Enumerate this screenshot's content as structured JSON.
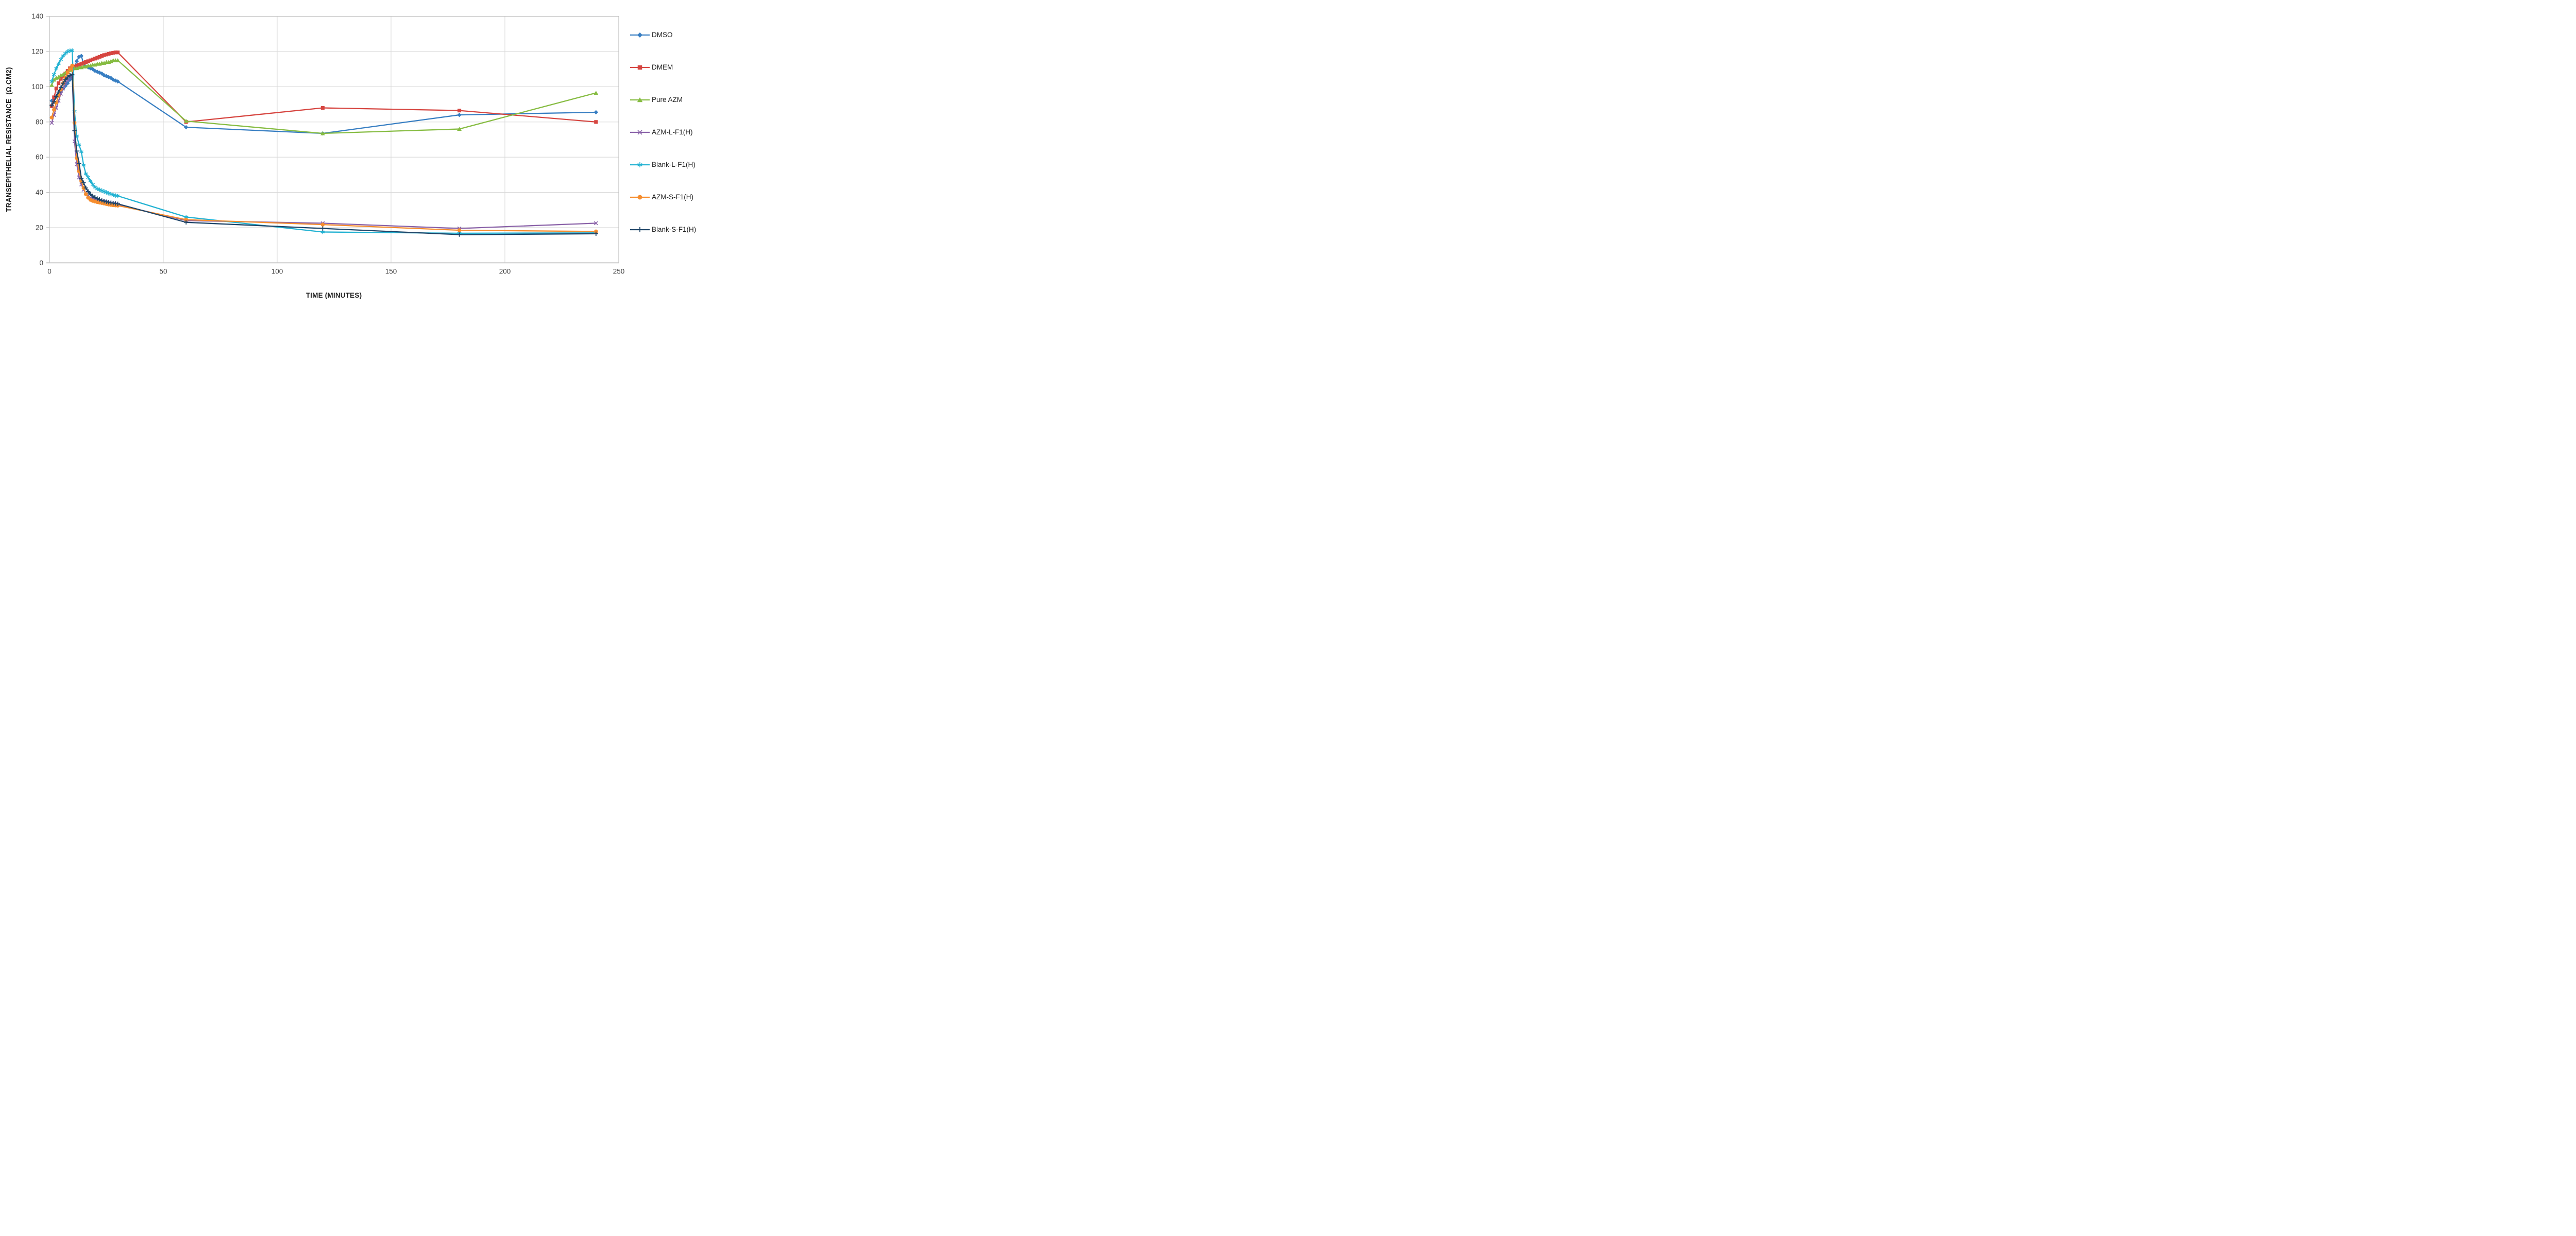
{
  "chart_data": {
    "type": "line",
    "xlabel": "TIME (MINUTES)",
    "ylabel": "TRANSEPITHELIAL RESISTANCE  (Ω.CM2)",
    "xlim": [
      0,
      250
    ],
    "ylim": [
      0,
      140
    ],
    "xticks": [
      0,
      50,
      100,
      150,
      200,
      250
    ],
    "yticks": [
      0,
      20,
      40,
      60,
      80,
      100,
      120,
      140
    ],
    "grid": true,
    "legend_position": "right",
    "x": [
      1,
      2,
      3,
      4,
      5,
      6,
      7,
      8,
      9,
      10,
      11,
      12,
      13,
      14,
      15,
      16,
      17,
      18,
      19,
      20,
      21,
      22,
      23,
      24,
      25,
      26,
      27,
      28,
      29,
      30,
      60,
      120,
      180,
      240
    ],
    "series": [
      {
        "name": "DMSO",
        "color": "#377EC2",
        "marker": "diamond",
        "values": [
          92,
          93,
          94.5,
          96,
          97.5,
          99,
          100.5,
          102,
          104,
          106.5,
          111,
          114.5,
          117,
          117.5,
          113,
          111.5,
          111,
          110.5,
          110,
          109,
          108.5,
          108,
          107.5,
          106.5,
          106,
          105.5,
          105,
          104,
          103.5,
          103,
          77,
          73.5,
          84,
          85.5
        ]
      },
      {
        "name": "DMEM",
        "color": "#D64540",
        "marker": "square",
        "values": [
          89,
          94,
          99,
          102,
          104.5,
          106,
          107.5,
          109,
          110.5,
          111.5,
          111.5,
          112,
          112.5,
          113,
          113.5,
          114,
          114.5,
          115,
          115.5,
          116,
          116.5,
          117,
          117.5,
          118,
          118.3,
          118.7,
          119,
          119.3,
          119.5,
          119.5,
          80,
          88,
          86.5,
          80
        ]
      },
      {
        "name": "Pure AZM",
        "color": "#86BC42",
        "marker": "triangle",
        "values": [
          101,
          104,
          105,
          105.5,
          106.5,
          107,
          108,
          108.5,
          109.5,
          110,
          110.5,
          110.5,
          111,
          111,
          111.5,
          111.5,
          112,
          112,
          112.5,
          112.5,
          113,
          113,
          113.5,
          113.5,
          114,
          114,
          114.5,
          115,
          115,
          115,
          80.5,
          73.5,
          76,
          96.5
        ]
      },
      {
        "name": "AZM-L-F1(H)",
        "color": "#8A62A8",
        "marker": "x",
        "values": [
          79.5,
          84,
          88,
          92,
          96,
          99,
          102,
          104,
          105.5,
          106.5,
          69,
          56,
          48.5,
          44.5,
          41.5,
          39.5,
          38,
          37,
          36.5,
          36,
          35.5,
          35.2,
          35,
          34.7,
          34.4,
          34,
          33.7,
          33.4,
          33.2,
          33,
          24,
          22.5,
          19.5,
          22.5
        ]
      },
      {
        "name": "Blank-L-F1(H)",
        "color": "#22B2D2",
        "marker": "asterisk",
        "values": [
          103,
          107,
          110.5,
          113,
          115.5,
          117.5,
          119,
          120,
          120.5,
          120.5,
          86,
          72,
          67,
          63,
          55.5,
          50.5,
          48.5,
          46.5,
          44.5,
          43,
          42,
          41.5,
          41,
          40.5,
          40,
          39.5,
          39,
          38.5,
          38.2,
          38,
          26,
          17.5,
          16.8,
          17
        ]
      },
      {
        "name": "AZM-S-F1(H)",
        "color": "#F68D2E",
        "marker": "circle",
        "values": [
          82.5,
          87,
          91,
          95,
          98.5,
          102,
          105,
          108,
          110,
          112,
          79.5,
          59.5,
          52,
          46.5,
          42.5,
          39,
          37,
          35.8,
          35.2,
          34.8,
          34.5,
          34.2,
          34,
          33.7,
          33.4,
          33.1,
          32.9,
          32.7,
          32.6,
          32.5,
          24.5,
          21.7,
          18.5,
          17.8
        ]
      },
      {
        "name": "Blank-S-F1(H)",
        "color": "#1F4568",
        "marker": "plus",
        "values": [
          89.5,
          91.5,
          94.5,
          97,
          99.5,
          102,
          104,
          105.5,
          106.5,
          107,
          75,
          63.5,
          56.5,
          48,
          45.5,
          42.5,
          40.5,
          39,
          38,
          37.2,
          36.5,
          36,
          35.5,
          35,
          34.7,
          34.4,
          34.1,
          33.9,
          33.7,
          33.5,
          23,
          19.5,
          16,
          16.5
        ]
      }
    ],
    "colors": {
      "gridline": "#D9D9D9",
      "frame": "#BFBFBF",
      "axis_text": "#3F3F3F",
      "background": "#FFFFFF"
    }
  }
}
